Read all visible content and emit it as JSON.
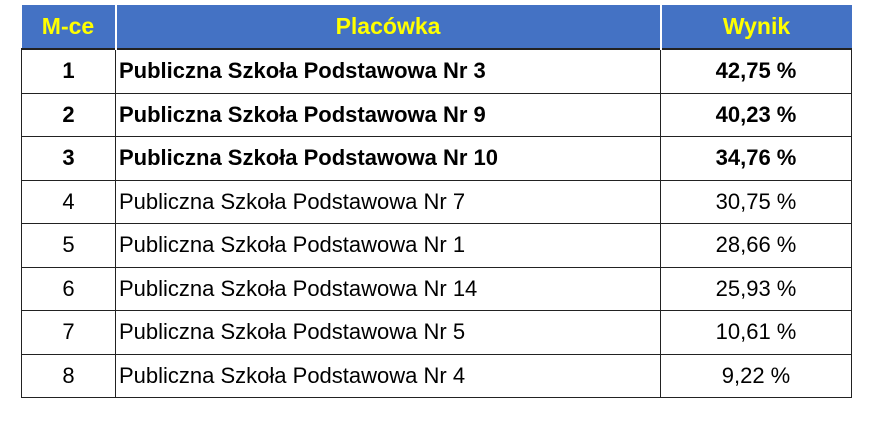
{
  "header": {
    "rank": "M-ce",
    "name": "Placówka",
    "score": "Wynik"
  },
  "colors": {
    "header_bg": "#4472c4",
    "header_text": "#ffff00"
  },
  "rows": [
    {
      "rank": "1",
      "name": "Publiczna Szkoła Podstawowa Nr 3",
      "score": "42,75 %",
      "bold": true
    },
    {
      "rank": "2",
      "name": "Publiczna Szkoła Podstawowa Nr 9",
      "score": "40,23 %",
      "bold": true
    },
    {
      "rank": "3",
      "name": "Publiczna Szkoła Podstawowa Nr 10",
      "score": "34,76 %",
      "bold": true
    },
    {
      "rank": "4",
      "name": "Publiczna Szkoła Podstawowa Nr 7",
      "score": "30,75 %",
      "bold": false
    },
    {
      "rank": "5",
      "name": "Publiczna Szkoła Podstawowa Nr 1",
      "score": "28,66 %",
      "bold": false
    },
    {
      "rank": "6",
      "name": "Publiczna Szkoła Podstawowa Nr 14",
      "score": "25,93 %",
      "bold": false
    },
    {
      "rank": "7",
      "name": "Publiczna Szkoła Podstawowa Nr 5",
      "score": "10,61 %",
      "bold": false
    },
    {
      "rank": "8",
      "name": "Publiczna Szkoła Podstawowa Nr 4",
      "score": "9,22 %",
      "bold": false
    }
  ]
}
